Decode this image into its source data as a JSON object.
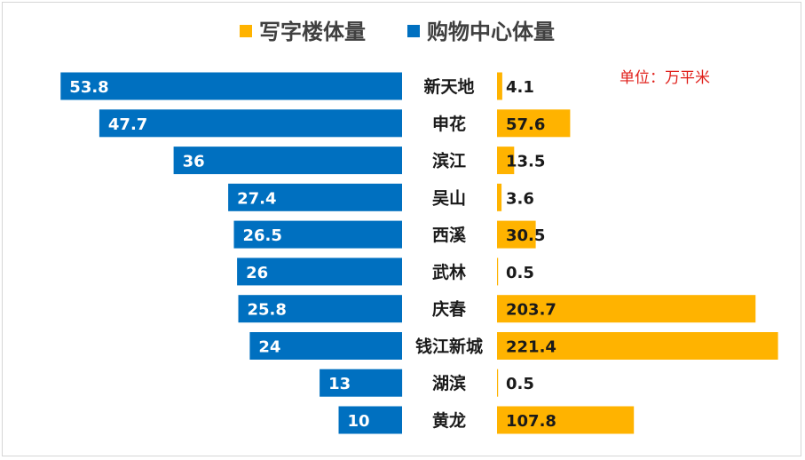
{
  "chart_data": {
    "type": "bar",
    "orientation": "horizontal-diverging",
    "title": "",
    "xlabel": "",
    "ylabel": "",
    "unit_note": "单位：万平米",
    "categories": [
      "新天地",
      "申花",
      "滨江",
      "吴山",
      "西溪",
      "武林",
      "庆春",
      "钱江新城",
      "湖滨",
      "黄龙"
    ],
    "series": [
      {
        "name": "写字楼体量",
        "color": "#ffb300",
        "side": "right",
        "values": [
          4.1,
          57.6,
          13.5,
          3.6,
          30.5,
          0.5,
          203.7,
          221.4,
          0.5,
          107.8
        ],
        "labels": [
          "4.1",
          "57.6",
          "13.5",
          "3.6",
          "30.5",
          "0.5",
          "203.7",
          "221.4",
          "0.5",
          "107.8"
        ]
      },
      {
        "name": "购物中心体量",
        "color": "#0070c0",
        "side": "left",
        "values": [
          53.8,
          47.7,
          36,
          27.4,
          26.5,
          26,
          25.8,
          24,
          13,
          10
        ],
        "labels": [
          "53.8",
          "47.7",
          "36",
          "27.4",
          "26.5",
          "26",
          "25.8",
          "24",
          "13",
          "10"
        ]
      }
    ],
    "legend_position": "top-center",
    "grid": false
  }
}
